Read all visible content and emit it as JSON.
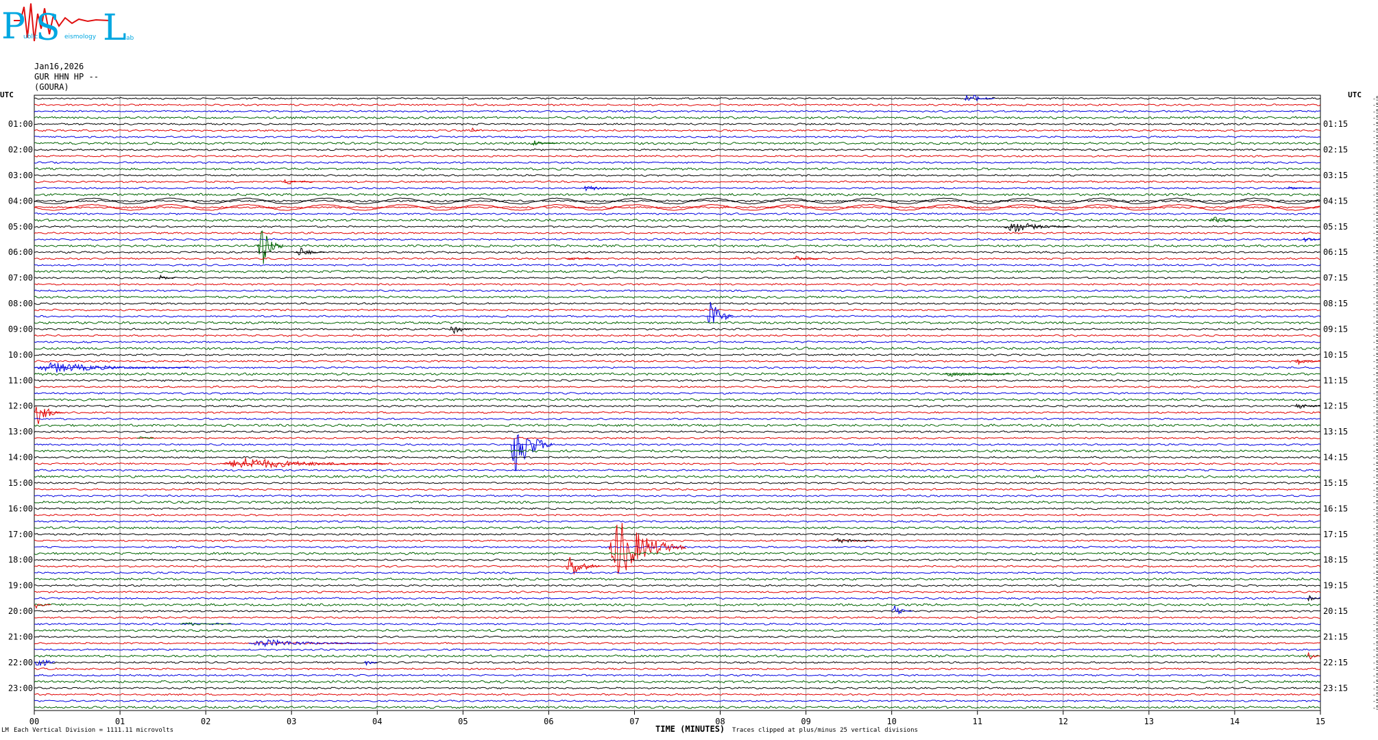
{
  "logo": {
    "big_letters": [
      "P",
      "S",
      "L"
    ],
    "small_text": [
      "ublic",
      "eismology",
      "ab"
    ]
  },
  "header": {
    "date": "Jan16,2026",
    "channel": "GUR HHN HP --",
    "station": "(GOURA)"
  },
  "chart_data": {
    "type": "line",
    "title": "",
    "xlabel": "TIME (MINUTES)",
    "ylabel": "",
    "xlim": [
      0,
      15
    ],
    "x_ticks": [
      "00",
      "01",
      "02",
      "03",
      "04",
      "05",
      "06",
      "07",
      "08",
      "09",
      "10",
      "11",
      "12",
      "13",
      "14",
      "15"
    ],
    "left_axis_label": "UTC",
    "right_axis_label": "UTC",
    "left_hour_labels": [
      "01:00",
      "02:00",
      "03:00",
      "04:00",
      "05:00",
      "06:00",
      "07:00",
      "08:00",
      "09:00",
      "10:00",
      "11:00",
      "12:00",
      "13:00",
      "14:00",
      "15:00",
      "16:00",
      "17:00",
      "18:00",
      "19:00",
      "20:00",
      "21:00",
      "22:00",
      "23:00"
    ],
    "right_hour_labels": [
      "01:15",
      "02:15",
      "03:15",
      "04:15",
      "05:15",
      "06:15",
      "07:15",
      "08:15",
      "09:15",
      "10:15",
      "11:15",
      "12:15",
      "13:15",
      "14:15",
      "15:15",
      "16:15",
      "17:15",
      "18:15",
      "19:15",
      "20:15",
      "21:15",
      "22:15",
      "23:15"
    ],
    "trace_count": 96,
    "trace_minutes": 15,
    "trace_colors": [
      "#000000",
      "#e00000",
      "#0000e0",
      "#006400"
    ],
    "trace_offsets": [
      "-5422",
      "-5419",
      "-5418",
      "-5419",
      "-5421",
      "-5421",
      "-5423",
      "-5421",
      "-5425",
      "-5424",
      "-5426",
      "-5421",
      "-5425",
      "-5422",
      "-5426",
      "-5425",
      "-5429",
      "-5403",
      "-5422",
      "-5426",
      "-5423",
      "-5425",
      "-5428",
      "-5426",
      "-5424",
      "-5424",
      "-5427",
      "-5428",
      "-5432",
      "-5429",
      "-5411",
      "-5431",
      "-5440",
      "-5461",
      "-5448",
      "-5449",
      "-5474",
      "-5437",
      "-5421",
      "-5399",
      "-5399",
      "-5398",
      "-5412",
      "-5408",
      "-5429",
      "-5420",
      "-5429",
      "-5431",
      "-5437",
      "-5401",
      "-5455",
      "-5444",
      "-5437",
      "-5450",
      "-5456",
      "-5446",
      "-5448",
      "-5453",
      "-5446",
      "-5448",
      "-5447",
      "-5449",
      "-5435",
      "-5443",
      "-5432",
      "-5417",
      "-5411",
      "-5426",
      "-5425",
      "-5411",
      "-5425",
      "-5431",
      "-5425",
      "-5426",
      "-5423",
      "-5430",
      "-5422",
      "-5426",
      "-5422",
      "-5416",
      "-5415",
      "-5418",
      "-5416",
      "-5418",
      "-5421",
      "-5416",
      "-5412",
      "-5417",
      "-5428",
      "-5415",
      "-5412",
      "-5405",
      "-5411",
      "-5412",
      "-5421",
      "-5416"
    ],
    "clip_note": "Traces clipped at plus/minus 25 vertical divisions",
    "scale_note": "Each Vertical Division = 1111.11 microvolts",
    "corner_mark": "LM",
    "events": [
      {
        "trace": 0,
        "minute": 10.85,
        "duration": 0.35,
        "amp": 10,
        "color": "#0000e0"
      },
      {
        "trace": 5,
        "minute": 5.1,
        "duration": 0.1,
        "amp": 4,
        "color": "#e00000"
      },
      {
        "trace": 7,
        "minute": 5.8,
        "duration": 0.3,
        "amp": 4,
        "color": "#006400"
      },
      {
        "trace": 13,
        "minute": 2.9,
        "duration": 0.35,
        "amp": 5,
        "color": "#e00000"
      },
      {
        "trace": 14,
        "minute": 6.4,
        "duration": 0.4,
        "amp": 5,
        "color": "#0000e0"
      },
      {
        "trace": 14,
        "minute": 14.6,
        "duration": 0.3,
        "amp": 3,
        "color": "#0000e0"
      },
      {
        "trace": 20,
        "minute": 11.3,
        "duration": 0.8,
        "amp": 10,
        "color": "#000000"
      },
      {
        "trace": 19,
        "minute": 13.7,
        "duration": 0.5,
        "amp": 6,
        "color": "#006400"
      },
      {
        "trace": 22,
        "minute": 14.8,
        "duration": 0.2,
        "amp": 4,
        "color": "#0000e0"
      },
      {
        "trace": 23,
        "minute": 2.6,
        "duration": 0.3,
        "amp": 40,
        "color": "#006400"
      },
      {
        "trace": 24,
        "minute": 3.05,
        "duration": 0.35,
        "amp": 8,
        "color": "#000000"
      },
      {
        "trace": 25,
        "minute": 6.2,
        "duration": 0.3,
        "amp": 4,
        "color": "#e00000"
      },
      {
        "trace": 25,
        "minute": 8.85,
        "duration": 0.3,
        "amp": 5,
        "color": "#e00000"
      },
      {
        "trace": 28,
        "minute": 1.45,
        "duration": 0.2,
        "amp": 4,
        "color": "#000000"
      },
      {
        "trace": 34,
        "minute": 7.85,
        "duration": 0.3,
        "amp": 30,
        "color": "#0000e0"
      },
      {
        "trace": 36,
        "minute": 4.85,
        "duration": 0.25,
        "amp": 12,
        "color": "#000000"
      },
      {
        "trace": 42,
        "minute": 0.0,
        "duration": 1.8,
        "amp": 8,
        "color": "#0000e0"
      },
      {
        "trace": 41,
        "minute": 14.7,
        "duration": 0.3,
        "amp": 5,
        "color": "#e00000"
      },
      {
        "trace": 43,
        "minute": 10.6,
        "duration": 0.8,
        "amp": 4,
        "color": "#006400"
      },
      {
        "trace": 49,
        "minute": 0.0,
        "duration": 0.35,
        "amp": 18,
        "color": "#e00000"
      },
      {
        "trace": 48,
        "minute": 14.7,
        "duration": 0.3,
        "amp": 5,
        "color": "#000000"
      },
      {
        "trace": 53,
        "minute": 1.2,
        "duration": 0.2,
        "amp": 4,
        "color": "#006400"
      },
      {
        "trace": 54,
        "minute": 5.55,
        "duration": 0.5,
        "amp": 48,
        "color": "#0000e0"
      },
      {
        "trace": 57,
        "minute": 2.2,
        "duration": 1.9,
        "amp": 10,
        "color": "#e00000"
      },
      {
        "trace": 70,
        "minute": 6.7,
        "duration": 0.9,
        "amp": 48,
        "color": "#e00000"
      },
      {
        "trace": 73,
        "minute": 6.2,
        "duration": 0.4,
        "amp": 20,
        "color": "#e00000"
      },
      {
        "trace": 69,
        "minute": 9.3,
        "duration": 0.5,
        "amp": 5,
        "color": "#000000"
      },
      {
        "trace": 79,
        "minute": 0.0,
        "duration": 0.2,
        "amp": 5,
        "color": "#e00000"
      },
      {
        "trace": 80,
        "minute": 10.0,
        "duration": 0.25,
        "amp": 9,
        "color": "#0000e0"
      },
      {
        "trace": 82,
        "minute": 1.7,
        "duration": 0.6,
        "amp": 3,
        "color": "#006400"
      },
      {
        "trace": 85,
        "minute": 2.5,
        "duration": 1.5,
        "amp": 6,
        "color": "#0000e0"
      },
      {
        "trace": 88,
        "minute": 0.0,
        "duration": 0.25,
        "amp": 14,
        "color": "#0000e0"
      },
      {
        "trace": 88,
        "minute": 3.85,
        "duration": 0.15,
        "amp": 6,
        "color": "#0000e0"
      },
      {
        "trace": 87,
        "minute": 14.85,
        "duration": 0.15,
        "amp": 8,
        "color": "#e00000"
      },
      {
        "trace": 78,
        "minute": 14.85,
        "duration": 0.15,
        "amp": 6,
        "color": "#000000"
      }
    ]
  }
}
